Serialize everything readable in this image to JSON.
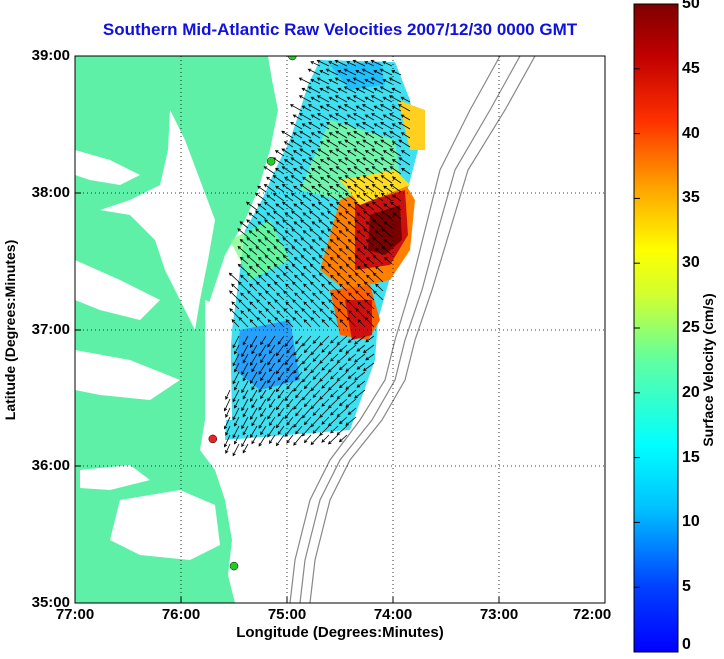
{
  "title": "Southern Mid-Atlantic Raw Velocities 2007/12/30 0000 GMT",
  "xlabel": "Longitude (Degrees:Minutes)",
  "ylabel": "Latitude (Degrees:Minutes)",
  "colorbar_label": "Surface Velocity (cm/s)",
  "x_ticks": [
    "77:00",
    "76:00",
    "75:00",
    "74:00",
    "73:00",
    "72:00"
  ],
  "y_ticks": [
    "39:00",
    "38:00",
    "37:00",
    "36:00",
    "35:00"
  ],
  "colorbar_ticks": [
    "50",
    "45",
    "40",
    "35",
    "30",
    "25",
    "20",
    "15",
    "10",
    "5",
    "0"
  ],
  "colors": {
    "land": "#5ff0a8",
    "title": "#1010e0",
    "arrows": "#000000",
    "isobath": "#888888",
    "station": "#22cc22",
    "station_alert": "#ee2222"
  },
  "chart_data": {
    "type": "map",
    "xlim": [
      -77,
      -72
    ],
    "ylim": [
      35,
      39
    ],
    "grid": true,
    "colorbar_range": [
      0,
      50
    ],
    "stations": [
      {
        "lon": -74.95,
        "lat": 39.0,
        "status": "normal"
      },
      {
        "lon": -75.15,
        "lat": 38.23,
        "status": "normal"
      },
      {
        "lon": -75.7,
        "lat": 36.2,
        "status": "alert"
      },
      {
        "lon": -75.5,
        "lat": 35.27,
        "status": "normal"
      }
    ]
  }
}
